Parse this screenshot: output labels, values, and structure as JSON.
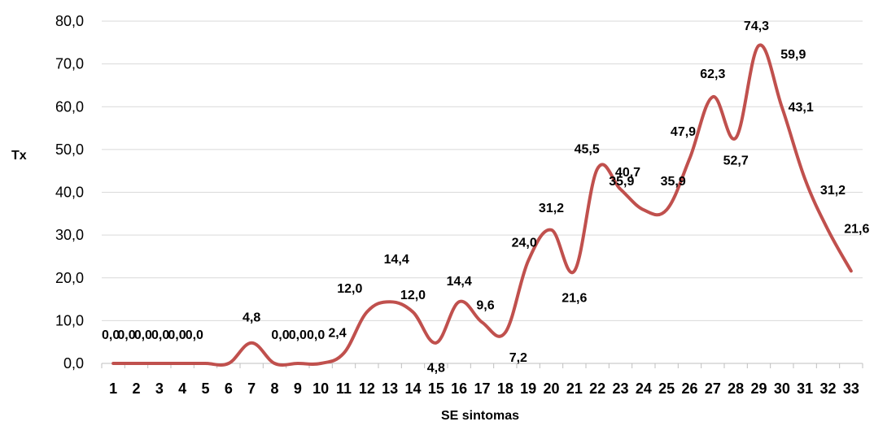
{
  "chart_data": {
    "type": "line",
    "xlabel": "SE sintomas",
    "ylabel": "Tx",
    "ylim": [
      0,
      80
    ],
    "yticks": [
      "0,0",
      "10,0",
      "20,0",
      "30,0",
      "40,0",
      "50,0",
      "60,0",
      "70,0",
      "80,0"
    ],
    "categories": [
      "1",
      "2",
      "3",
      "4",
      "5",
      "6",
      "7",
      "8",
      "9",
      "10",
      "11",
      "12",
      "13",
      "14",
      "15",
      "16",
      "17",
      "18",
      "19",
      "20",
      "21",
      "22",
      "23",
      "24",
      "25",
      "26",
      "27",
      "28",
      "29",
      "30",
      "31",
      "32",
      "33"
    ],
    "values": [
      0,
      0,
      0,
      0,
      0,
      0,
      4.8,
      0,
      0,
      0,
      2.4,
      12.0,
      14.4,
      12.0,
      4.8,
      14.4,
      9.6,
      7.2,
      24.0,
      31.2,
      21.6,
      45.5,
      40.7,
      35.9,
      35.9,
      47.9,
      62.3,
      52.7,
      74.3,
      59.9,
      43.1,
      31.2,
      21.6
    ],
    "value_labels": [
      "0,0",
      "0,0",
      "0,0",
      "0,0",
      "0,0",
      "0,0",
      "4,8",
      "0,0",
      "0,0",
      "0,0",
      "2,4",
      "12,0",
      "14,4",
      "12,0",
      "4,8",
      "14,4",
      "9,6",
      "7,2",
      "24,0",
      "31,2",
      "21,6",
      "45,5",
      "40,7",
      "35,9",
      "35,9",
      "47,9",
      "62,3",
      "52,7",
      "74,3",
      "59,9",
      "43,1",
      "31,2",
      "21,6"
    ],
    "grid": true,
    "line_color": "#c0504d",
    "gridline_color": "#d9d9d9"
  }
}
